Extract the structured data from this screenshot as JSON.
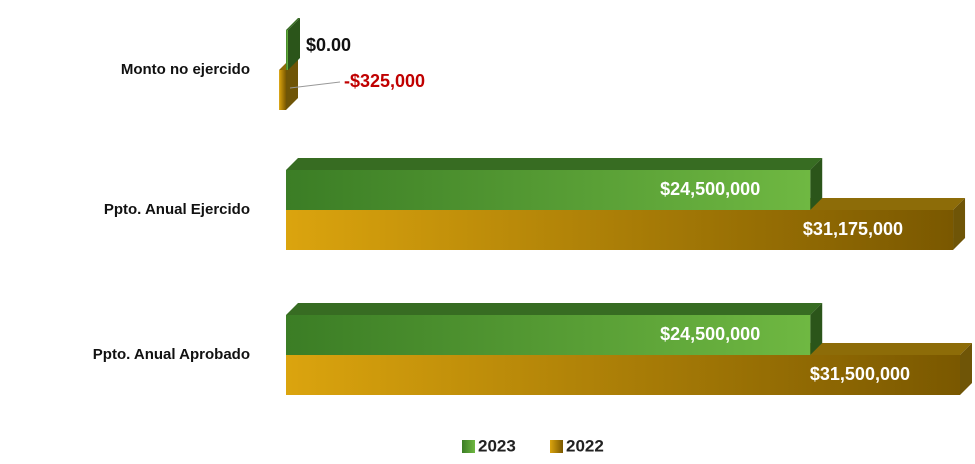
{
  "chart_data": {
    "type": "bar",
    "orientation": "horizontal",
    "categories": [
      "Monto no ejercido",
      "Ppto. Anual Ejercido",
      "Ppto. Anual Aprobado"
    ],
    "series": [
      {
        "name": "2023",
        "color": "#4f9a30",
        "values": [
          0,
          24500000,
          24500000
        ],
        "value_labels": [
          "$0.00",
          "$24,500,000",
          "$24,500,000"
        ]
      },
      {
        "name": "2022",
        "color": "#c99a0c",
        "values": [
          -325000,
          31175000,
          31500000
        ],
        "value_labels": [
          "-$325,000",
          "$31,175,000",
          "$31,500,000"
        ]
      }
    ],
    "legend": "bottom"
  }
}
